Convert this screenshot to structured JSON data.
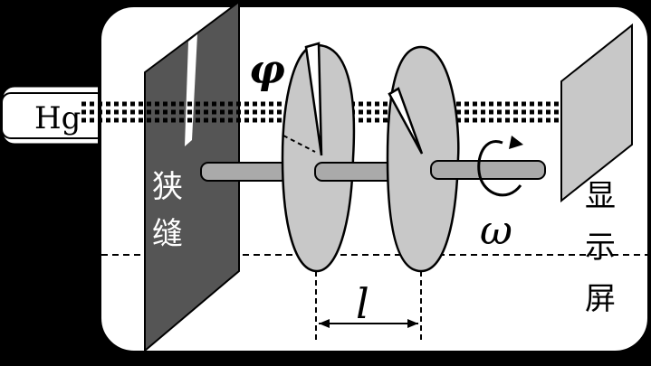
{
  "source_label": "Hg",
  "slit_label_line1": "狭",
  "slit_label_line2": "缝",
  "screen_label_line1": "显",
  "screen_label_line2": "示",
  "screen_label_line3": "屏",
  "angle_symbol": "φ",
  "angular_velocity_symbol": "ω",
  "distance_symbol": "l",
  "colors": {
    "background": "#000000",
    "chamber_fill": "#ffffff",
    "slit_plate": "#555555",
    "disc_fill": "#c8c8c8",
    "screen_fill": "#c8c8c8",
    "shaft_fill": "#aaaaaa"
  }
}
